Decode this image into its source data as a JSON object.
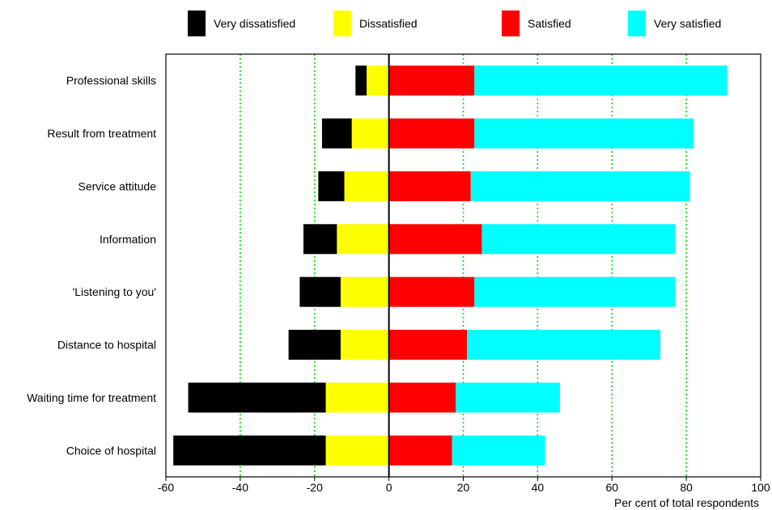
{
  "chart_data": {
    "type": "bar",
    "stacked": true,
    "orientation": "horizontal",
    "categories": [
      "Professional skills",
      "Result from treatment",
      "Service attitude",
      "Information",
      "'Listening to you'",
      "Distance to hospital",
      "Waiting time for treatment",
      "Choice of hospital"
    ],
    "series": [
      {
        "name": "Very dissatisfied",
        "color": "#000000",
        "side": "negative",
        "values": [
          3,
          8,
          7,
          9,
          11,
          14,
          37,
          41
        ]
      },
      {
        "name": "Dissatisfied",
        "color": "#ffff00",
        "side": "negative",
        "values": [
          6,
          10,
          12,
          14,
          13,
          13,
          17,
          17
        ]
      },
      {
        "name": "Satisfied",
        "color": "#ff0000",
        "side": "positive",
        "values": [
          23,
          23,
          22,
          25,
          23,
          21,
          18,
          17
        ]
      },
      {
        "name": "Very satisfied",
        "color": "#00ffff",
        "side": "positive",
        "values": [
          68,
          59,
          59,
          52,
          54,
          52,
          28,
          25
        ]
      }
    ],
    "xlim": [
      -60,
      100
    ],
    "xticks": [
      -60,
      -40,
      -20,
      0,
      20,
      40,
      60,
      80,
      100
    ],
    "xlabel": "Per cent of total respondents",
    "ylabel": "",
    "title": "",
    "grid": {
      "vertical": true,
      "style": "dotted",
      "color": "#00dd00"
    },
    "legend_position": "top"
  }
}
